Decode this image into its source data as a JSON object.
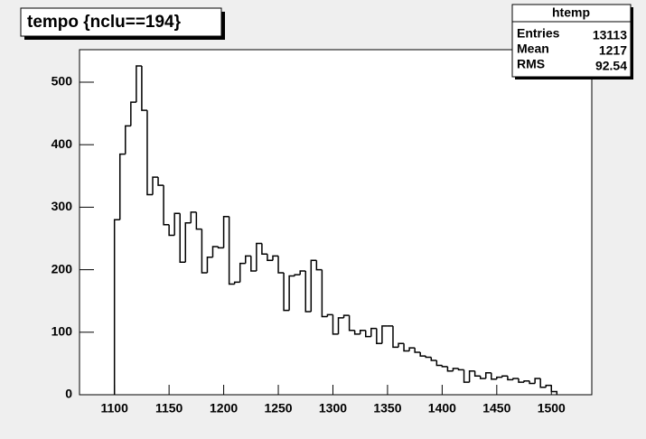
{
  "chart_data": {
    "type": "histogram",
    "title": "tempo {nclu==194}",
    "bins": [
      1100,
      1105,
      1110,
      1115,
      1120,
      1125,
      1130,
      1135,
      1140,
      1145,
      1150,
      1155,
      1160,
      1165,
      1170,
      1175,
      1180,
      1185,
      1190,
      1195,
      1200,
      1205,
      1210,
      1215,
      1220,
      1225,
      1230,
      1235,
      1240,
      1245,
      1250,
      1255,
      1260,
      1265,
      1270,
      1275,
      1280,
      1285,
      1290,
      1295,
      1300,
      1305,
      1310,
      1315,
      1320,
      1325,
      1330,
      1335,
      1340,
      1345,
      1350,
      1355,
      1360,
      1365,
      1370,
      1375,
      1380,
      1385,
      1390,
      1395,
      1400,
      1405,
      1410,
      1415,
      1420,
      1425,
      1430,
      1435,
      1440,
      1445,
      1450,
      1455,
      1460,
      1465,
      1470,
      1475,
      1480,
      1485,
      1490,
      1495,
      1500,
      1505
    ],
    "values": [
      280,
      385,
      430,
      468,
      526,
      455,
      320,
      348,
      335,
      272,
      255,
      290,
      212,
      275,
      292,
      265,
      195,
      220,
      237,
      235,
      285,
      177,
      180,
      210,
      222,
      198,
      242,
      225,
      215,
      222,
      195,
      135,
      190,
      192,
      198,
      133,
      215,
      200,
      125,
      128,
      97,
      123,
      127,
      103,
      97,
      103,
      93,
      106,
      82,
      110,
      110,
      76,
      82,
      70,
      75,
      68,
      62,
      60,
      55,
      47,
      45,
      38,
      42,
      40,
      20,
      38,
      30,
      26,
      35,
      25,
      28,
      30,
      24,
      26,
      20,
      22,
      18,
      26,
      12,
      15,
      5
    ],
    "color": "#000000",
    "xlim": [
      1068,
      1537
    ],
    "xticks": [
      1100,
      1150,
      1200,
      1250,
      1300,
      1350,
      1400,
      1450,
      1500
    ],
    "ylim": [
      0,
      552
    ],
    "yticks": [
      0,
      100,
      200,
      300,
      400,
      500
    ],
    "grid": false,
    "stats": {
      "title": "htemp",
      "rows": [
        {
          "label": "Entries",
          "value": 13113
        },
        {
          "label": "Mean",
          "value": 1217
        },
        {
          "label": "RMS",
          "value": 92.54
        }
      ]
    }
  }
}
